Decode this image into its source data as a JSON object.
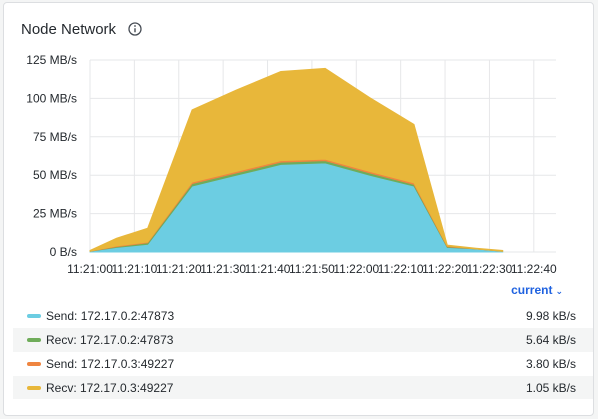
{
  "panel": {
    "title": "Node Network",
    "info_icon": "info-circle-icon"
  },
  "legend": {
    "sort_label": "current",
    "sort_icon": "chevron-down-icon",
    "rows": [
      {
        "label": "Send: 172.17.0.2:47873",
        "value": "9.98 kB/s",
        "color": "#6ccde2"
      },
      {
        "label": "Recv: 172.17.0.2:47873",
        "value": "5.64 kB/s",
        "color": "#6fac5a"
      },
      {
        "label": "Send: 172.17.0.3:49227",
        "value": "3.80 kB/s",
        "color": "#ef8540"
      },
      {
        "label": "Recv: 172.17.0.3:49227",
        "value": "1.05 kB/s",
        "color": "#e8b73a"
      }
    ]
  },
  "chart_data": {
    "type": "area",
    "stacked": true,
    "x": [
      "11:21:00",
      "11:21:10",
      "11:21:20",
      "11:21:30",
      "11:21:40",
      "11:21:50",
      "11:22:00",
      "11:22:10",
      "11:22:20",
      "11:22:30",
      "11:22:40"
    ],
    "series": [
      {
        "name": "Send: 172.17.0.2:47873",
        "color": "#6ccde2",
        "values": [
          0.5,
          3,
          5,
          43,
          50,
          57,
          58,
          50,
          43,
          3,
          2,
          0.5
        ]
      },
      {
        "name": "Recv: 172.17.0.2:47873",
        "color": "#6fac5a",
        "values": [
          0,
          0.5,
          1,
          1.5,
          1.5,
          1.5,
          1.5,
          1.5,
          1,
          0.5,
          0,
          0
        ]
      },
      {
        "name": "Send: 172.17.0.3:49227",
        "color": "#ef8540",
        "values": [
          0,
          0.5,
          0.5,
          1,
          1,
          1,
          1,
          1,
          1,
          0.5,
          0,
          0
        ]
      },
      {
        "name": "Recv: 172.17.0.3:49227",
        "color": "#e8b73a",
        "values": [
          0.5,
          5,
          9,
          47,
          53,
          58,
          59,
          48,
          38,
          0.5,
          0.5,
          0.5
        ]
      }
    ],
    "x_values": [
      0,
      6,
      13,
      23,
      33,
      43,
      53,
      63,
      73,
      80.5,
      87,
      93
    ],
    "x_ticks": [
      0,
      10,
      20,
      30,
      40,
      50,
      60,
      70,
      80,
      90,
      100
    ],
    "y_ticks": [
      "0 B/s",
      "25 MB/s",
      "50 MB/s",
      "75 MB/s",
      "100 MB/s",
      "125 MB/s"
    ],
    "y_tick_values": [
      0,
      25,
      50,
      75,
      100,
      125
    ],
    "ylim": [
      0,
      125
    ],
    "xlim": [
      0,
      105
    ],
    "grid": true,
    "legend_placement": "bottom"
  }
}
